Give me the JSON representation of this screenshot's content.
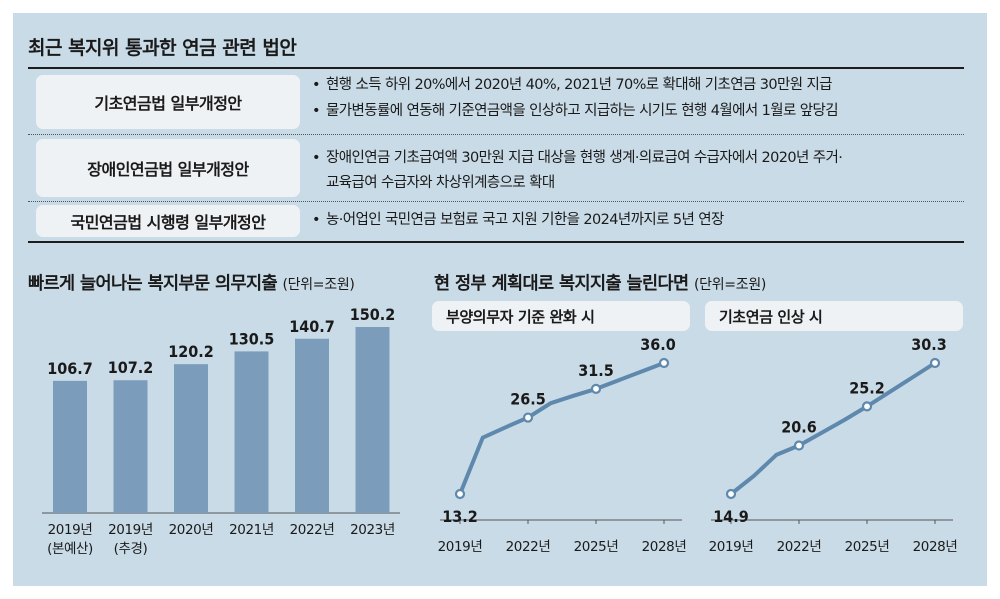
{
  "top_table": {
    "title": "최근 복지위 통과한 연금 관련 법안",
    "rows": [
      {
        "label": "기초연금법 일부개정안",
        "lines": [
          "현행 소득 하위 20%에서 2020년 40%, 2021년 70%로 확대해 기초연금 30만원 지급",
          "물가변동률에 연동해 기준연금액을 인상하고 지급하는 시기도 현행 4월에서 1월로 앞당김"
        ]
      },
      {
        "label": "장애인연금법 일부개정안",
        "lines": [
          "장애인연금 기초급여액 30만원 지급 대상을 현행 생계·의료급여 수급자에서 2020년 주거·",
          "교육급여 수급자와 차상위계층으로 확대"
        ]
      },
      {
        "label": "국민연금법 시행령 일부개정안",
        "lines": [
          "농·어업인 국민연금 보험료 국고 지원 기한을 2024년까지로 5년 연장"
        ]
      }
    ],
    "bullet": "•"
  },
  "chart_data": [
    {
      "type": "bar",
      "title": "빠르게 늘어나는 복지부문 의무지출",
      "unit": "(단위=조원)",
      "categories": [
        [
          "2019년",
          "(본예산)"
        ],
        [
          "2019년",
          "(추경)"
        ],
        [
          "2020년"
        ],
        [
          "2021년"
        ],
        [
          "2022년"
        ],
        [
          "2023년"
        ]
      ],
      "values": [
        106.7,
        107.2,
        120.2,
        130.5,
        140.7,
        150.2
      ],
      "value_labels": [
        "106.7",
        "107.2",
        "120.2",
        "130.5",
        "140.7",
        "150.2"
      ],
      "bar_color": "#7b9dbb"
    },
    {
      "type": "line",
      "title": "현 정부 계획대로 복지지출 늘린다면",
      "unit": "(단위=조원)",
      "panels": [
        {
          "subtitle": "부양의무자 기준 완화 시",
          "x_labels": [
            "2019년",
            "2022년",
            "2025년",
            "2028년"
          ],
          "x": [
            2019,
            2020,
            2021,
            2022,
            2023,
            2024,
            2025,
            2026,
            2027,
            2028
          ],
          "y": [
            13.2,
            23.0,
            24.8,
            26.5,
            29.0,
            30.3,
            31.5,
            33.0,
            34.5,
            36.0
          ],
          "labeled_points": [
            {
              "x": 2019,
              "y": 13.2,
              "label": "13.2"
            },
            {
              "x": 2022,
              "y": 26.5,
              "label": "26.5"
            },
            {
              "x": 2025,
              "y": 31.5,
              "label": "31.5"
            },
            {
              "x": 2028,
              "y": 36.0,
              "label": "36.0"
            }
          ]
        },
        {
          "subtitle": "기초연금 인상 시",
          "x_labels": [
            "2019년",
            "2022년",
            "2025년",
            "2028년"
          ],
          "x": [
            2019,
            2020,
            2021,
            2022,
            2023,
            2024,
            2025,
            2026,
            2027,
            2028
          ],
          "y": [
            14.9,
            17.0,
            19.5,
            20.6,
            22.1,
            23.6,
            25.2,
            26.9,
            28.6,
            30.3
          ],
          "labeled_points": [
            {
              "x": 2019,
              "y": 14.9,
              "label": "14.9"
            },
            {
              "x": 2022,
              "y": 20.6,
              "label": "20.6"
            },
            {
              "x": 2025,
              "y": 25.2,
              "label": "25.2"
            },
            {
              "x": 2028,
              "y": 30.3,
              "label": "30.3"
            }
          ]
        }
      ],
      "line_color": "#5f88ad",
      "marker_fill": "#ffffff"
    }
  ]
}
